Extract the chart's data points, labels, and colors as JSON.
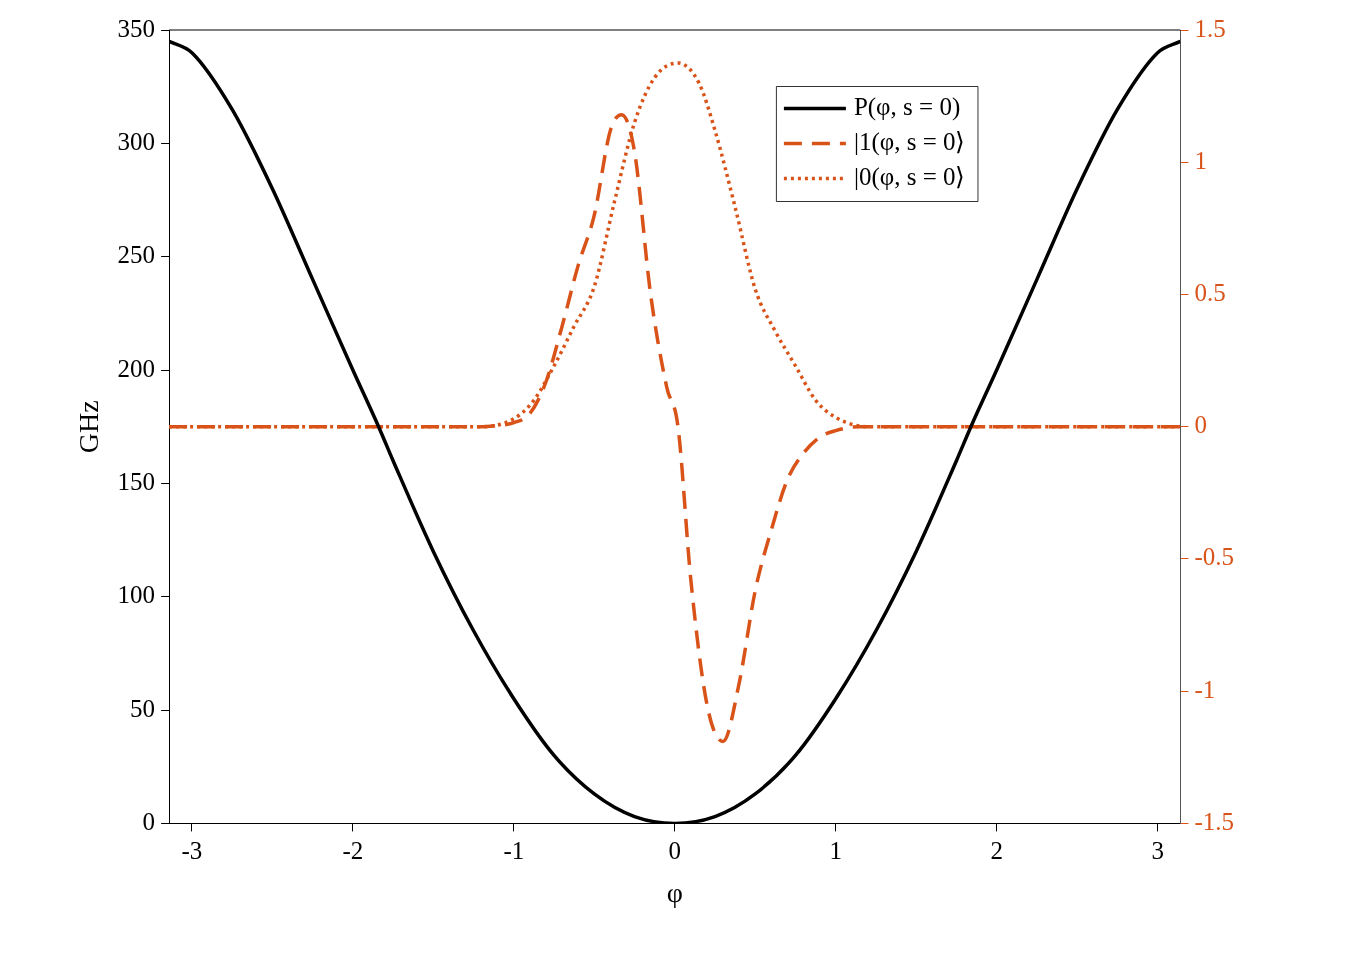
{
  "chart_data": {
    "type": "line",
    "xlabel": "φ",
    "ylabel": "GHz",
    "xlim": [
      -3.1416,
      3.1416
    ],
    "xticks": [
      -3,
      -2,
      -1,
      0,
      1,
      2,
      3
    ],
    "ylim": [
      0,
      350
    ],
    "yticks": [
      0,
      50,
      100,
      150,
      200,
      250,
      300,
      350
    ],
    "y2lim": [
      -1.5,
      1.5
    ],
    "y2ticks": [
      -1.5,
      -1,
      -0.5,
      0,
      0.5,
      1,
      1.5
    ],
    "grid": false,
    "legend": "top right",
    "marker": "none",
    "series": [
      {
        "name": "P(φ, s = 0)",
        "color": "#000000",
        "line_style": "solid",
        "x": [
          -3.1416,
          -3,
          -2.75,
          -2.5,
          -2.25,
          -2,
          -1.84,
          -1.75,
          -1.5,
          -1.25,
          -1,
          -0.75,
          -0.5,
          -0.25,
          0,
          0.25,
          0.5,
          0.75,
          1,
          1.25,
          1.5,
          1.75,
          1.84,
          2,
          2.25,
          2.5,
          2.75,
          3,
          3.1416
        ],
        "values": [
          345,
          340,
          315,
          280,
          240,
          200,
          175,
          160,
          120,
          85,
          55,
          30,
          13,
          3,
          0,
          3,
          13,
          30,
          55,
          85,
          120,
          160,
          175,
          200,
          240,
          280,
          315,
          340,
          345
        ]
      },
      {
        "name": "|1(φ, s = 0⟩",
        "color": "#d95319",
        "line_style": "dashed",
        "axis": "y2",
        "x": [
          -3.1416,
          -1.2,
          -1.1,
          -1.0,
          -0.9,
          -0.8,
          -0.7,
          -0.6,
          -0.5,
          -0.4,
          -0.33,
          -0.25,
          -0.15,
          -0.05,
          0.02,
          0.1,
          0.2,
          0.3,
          0.4,
          0.5,
          0.6,
          0.7,
          0.8,
          0.9,
          1.0,
          1.15,
          3.1416
        ],
        "values": [
          0,
          0,
          0.005,
          0.015,
          0.05,
          0.17,
          0.38,
          0.61,
          0.8,
          1.12,
          1.18,
          1.04,
          0.5,
          0.15,
          0,
          -0.58,
          -1.05,
          -1.19,
          -0.97,
          -0.62,
          -0.39,
          -0.2,
          -0.1,
          -0.04,
          -0.015,
          0,
          0
        ]
      },
      {
        "name": "|0(φ, s = 0⟩",
        "color": "#d95319",
        "line_style": "dotted",
        "axis": "y2",
        "x": [
          -3.1416,
          -1.2,
          -1.0,
          -0.875,
          -0.75,
          -0.625,
          -0.5,
          -0.375,
          -0.25,
          -0.125,
          0.02,
          0.15,
          0.25,
          0.375,
          0.5,
          0.625,
          0.75,
          0.875,
          1.0,
          1.2,
          3.1416
        ],
        "values": [
          0,
          0,
          0.03,
          0.1,
          0.23,
          0.38,
          0.53,
          0.85,
          1.15,
          1.32,
          1.375,
          1.3,
          1.12,
          0.83,
          0.52,
          0.36,
          0.23,
          0.1,
          0.035,
          0,
          0
        ]
      }
    ]
  }
}
